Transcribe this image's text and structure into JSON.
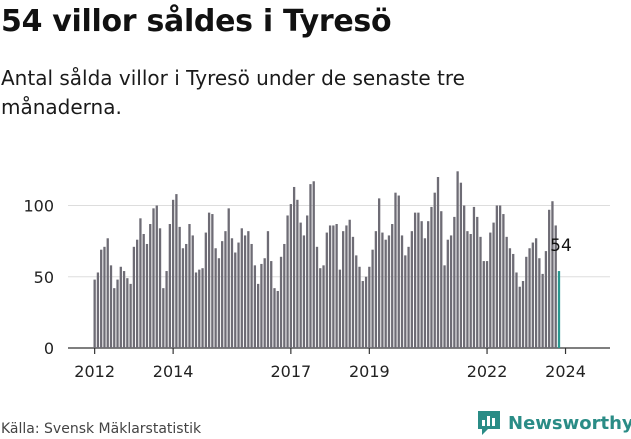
{
  "title": "54 villor såldes i Tyresö",
  "subtitle": "Antal sålda villor i Tyresö under de senaste tre månaderna.",
  "source": "Källa: Svensk Mäklarstatistik",
  "brand": "Newsworthy",
  "colors": {
    "bar": "#6e6c75",
    "highlight": "#2a9890",
    "brand": "#2a8c86"
  },
  "chart_data": {
    "type": "bar",
    "title": "54 villor såldes i Tyresö",
    "xlabel": "",
    "ylabel": "",
    "ylim": [
      0,
      130
    ],
    "y_ticks": [
      0,
      50,
      100
    ],
    "x_ticks": [
      "2012",
      "2014",
      "2017",
      "2019",
      "2022",
      "2024"
    ],
    "start": "2012-01",
    "interval": "monthly",
    "highlight_label": "54",
    "values": [
      48,
      53,
      69,
      71,
      77,
      58,
      42,
      48,
      57,
      54,
      49,
      45,
      71,
      76,
      91,
      80,
      73,
      87,
      98,
      100,
      84,
      42,
      54,
      87,
      104,
      108,
      85,
      70,
      73,
      87,
      79,
      53,
      55,
      56,
      81,
      95,
      94,
      70,
      63,
      75,
      82,
      98,
      77,
      67,
      74,
      84,
      79,
      82,
      73,
      58,
      45,
      59,
      63,
      82,
      61,
      42,
      40,
      64,
      73,
      93,
      101,
      113,
      104,
      88,
      79,
      93,
      115,
      117,
      71,
      56,
      58,
      81,
      86,
      86,
      87,
      55,
      82,
      86,
      90,
      78,
      65,
      57,
      47,
      50,
      57,
      69,
      82,
      105,
      81,
      76,
      79,
      87,
      109,
      107,
      79,
      65,
      71,
      82,
      95,
      95,
      89,
      77,
      89,
      99,
      109,
      120,
      96,
      58,
      76,
      79,
      92,
      124,
      116,
      100,
      82,
      80,
      99,
      92,
      78,
      61,
      61,
      81,
      88,
      100,
      100,
      94,
      78,
      70,
      66,
      53,
      43,
      47,
      64,
      70,
      74,
      77,
      63,
      52,
      68,
      97,
      103,
      86,
      54
    ]
  }
}
